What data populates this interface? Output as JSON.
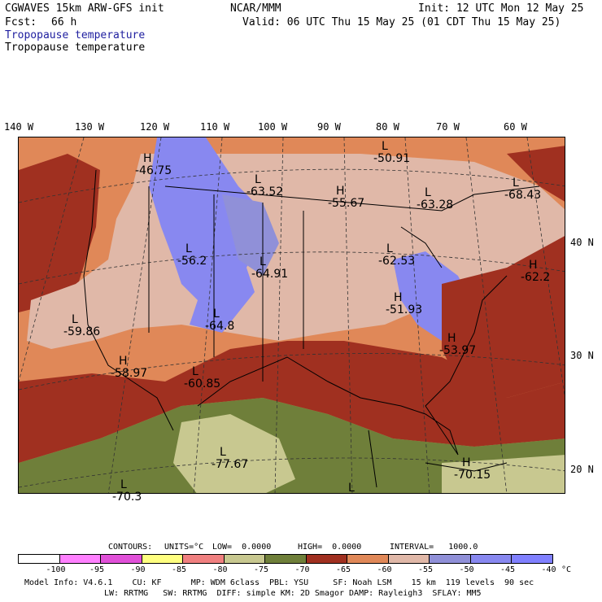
{
  "header": {
    "model": "CGWAVES 15km ARW-GFS init",
    "center": "NCAR/MMM",
    "init": "Init: 12 UTC Mon 12 May 25",
    "fcst_label": "Fcst:",
    "fcst_value": "66 h",
    "valid": "Valid: 06 UTC Thu 15 May 25 (01 CDT Thu 15 May 25)",
    "field_1": "Tropopause temperature",
    "field_2": "Tropopause temperature"
  },
  "longitude_labels": [
    "140 W",
    "130 W",
    "120 W",
    "110 W",
    "100 W",
    "90 W",
    "80 W",
    "70 W",
    "60 W"
  ],
  "latitude_labels": [
    "40 N",
    "30 N",
    "20 N"
  ],
  "map_markers": [
    {
      "type": "H",
      "value": "-46.75"
    },
    {
      "type": "L",
      "value": "-63.52"
    },
    {
      "type": "H",
      "value": "-55.67"
    },
    {
      "type": "L",
      "value": "-50.91"
    },
    {
      "type": "L",
      "value": "-63.28"
    },
    {
      "type": "L",
      "value": "-68.43"
    },
    {
      "type": "L",
      "value": "-56.2"
    },
    {
      "type": "L",
      "value": "-64.91"
    },
    {
      "type": "L",
      "value": "-62.53"
    },
    {
      "type": "H",
      "value": "-62.2"
    },
    {
      "type": "H",
      "value": "-51.93"
    },
    {
      "type": "L",
      "value": "-59.86"
    },
    {
      "type": "L",
      "value": "-64.8"
    },
    {
      "type": "H",
      "value": "-53.97"
    },
    {
      "type": "H",
      "value": "-58.97"
    },
    {
      "type": "L",
      "value": "-60.85"
    },
    {
      "type": "L",
      "value": "-77.67"
    },
    {
      "type": "H",
      "value": "-70.15"
    },
    {
      "type": "L",
      "value": "-70.3"
    },
    {
      "type": "L",
      "value": ""
    }
  ],
  "colors": {
    "lt100": "#ffffff",
    "c95": "#ff80ff",
    "c90": "#e050d8",
    "c85": "#ffff80",
    "c80": "#f08080",
    "c75": "#c8c890",
    "c70": "#6f7f3a",
    "c65": "#a03020",
    "c60": "#e08858",
    "c55": "#e0b8a8",
    "c50": "#9090d8",
    "c45": "#8888f0",
    "c40": "#8080ff"
  },
  "footer": {
    "contours_label": "CONTOURS:",
    "units": "UNITS=°C",
    "low": "LOW=  0.0000",
    "high": "HIGH=  0.0000",
    "interval": "INTERVAL=   1000.0",
    "ticks": [
      "-100",
      "-95",
      "-90",
      "-85",
      "-80",
      "-75",
      "-70",
      "-65",
      "-60",
      "-55",
      "-50",
      "-45",
      "-40"
    ],
    "unit_end": "°C",
    "line1": "Model Info: V4.6.1    CU: KF      MP: WDM 6class  PBL: YSU     SF: Noah LSM    15 km  119 levels  90 sec",
    "line2": "LW: RRTMG   SW: RRTMG  DIFF: simple KM: 2D Smagor DAMP: Rayleigh3  SFLAY: MM5"
  }
}
